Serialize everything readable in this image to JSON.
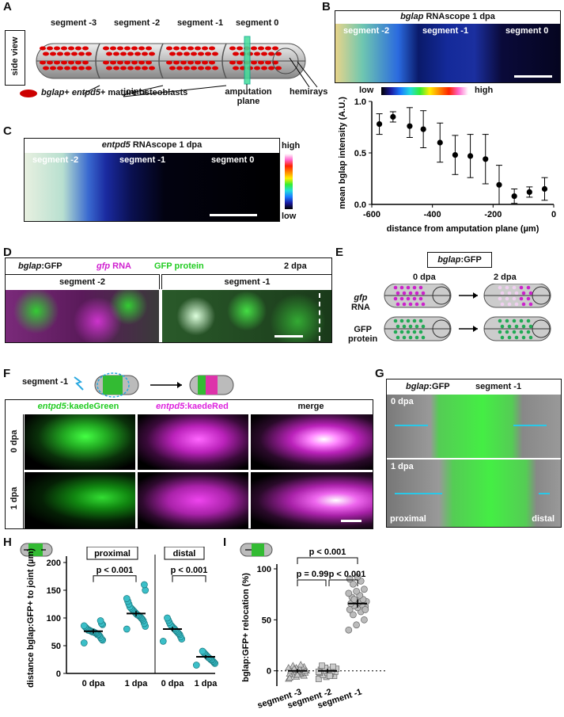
{
  "panels": {
    "A": {
      "label": "A",
      "side_view": "side view",
      "segments": [
        "segment -3",
        "segment -2",
        "segment -1",
        "segment 0"
      ],
      "joints": "joints",
      "amputation_plane": "amputation plane",
      "hemirays": "hemirays",
      "legend_gene1": "bglap",
      "legend_plus": "+",
      "legend_gene2": "entpd5",
      "legend_tail": "+ mature osteoblasts"
    },
    "B": {
      "label": "B",
      "title_gene": "bglap",
      "title_rest": "RNAscope 1 dpa",
      "segments": [
        "segment -2",
        "segment -1",
        "segment 0"
      ],
      "scale_low": "low",
      "scale_high": "high"
    },
    "C": {
      "label": "C",
      "title_gene": "entpd5",
      "title_rest": "RNAscope 1 dpa",
      "segments": [
        "segment -2",
        "segment -1",
        "segment 0"
      ],
      "scale_high": "high",
      "scale_low": "low"
    },
    "D": {
      "label": "D",
      "title_gene": "bglap",
      "title_gfp": ":GFP",
      "rna_gene": "gfp",
      "rna_word": "RNA",
      "protein": "GFP protein",
      "time": "2 dpa",
      "segments": [
        "segment -2",
        "segment -1"
      ]
    },
    "E": {
      "label": "E",
      "title_gene": "bglap",
      "title_gfp": ":GFP",
      "t0": "0 dpa",
      "t2": "2 dpa",
      "row1_gene": "gfp",
      "row1_word": "RNA",
      "row2_a": "GFP",
      "row2_b": "protein"
    },
    "F": {
      "label": "F",
      "segment": "segment -1",
      "col1_gene": "entpd5",
      "col1_rest": ":kaedeGreen",
      "col2_gene": "entpd5",
      "col2_rest": ":kaedeRed",
      "col3": "merge",
      "row1": "0 dpa",
      "row2": "1 dpa"
    },
    "G": {
      "label": "G",
      "title_gene": "bglap",
      "title_gfp": ":GFP",
      "segment": "segment -1",
      "t0": "0 dpa",
      "t1": "1 dpa",
      "proximal": "proximal",
      "distal": "distal"
    },
    "H": {
      "label": "H",
      "group_proximal": "proximal",
      "group_distal": "distal",
      "p1": "p < 0.001",
      "p2": "p < 0.001"
    },
    "I": {
      "label": "I",
      "p_top": "p < 0.001",
      "p_left": "p = 0.99",
      "p_right": "p < 0.001"
    }
  },
  "chart_data": [
    {
      "panel": "B",
      "type": "scatter",
      "xlabel": "distance from amputation plane (µm)",
      "ylabel": "mean bglap intensity (A.U.)",
      "xlim": [
        -600,
        0
      ],
      "ylim": [
        0,
        1.0
      ],
      "xticks": [
        -600,
        -400,
        -200,
        0
      ],
      "yticks": [
        0.0,
        0.5,
        1.0
      ],
      "reference_line": 0,
      "points": [
        {
          "x": -575,
          "y": 0.78,
          "lo": 0.68,
          "hi": 0.88
        },
        {
          "x": -530,
          "y": 0.85,
          "lo": 0.8,
          "hi": 0.9
        },
        {
          "x": -475,
          "y": 0.76,
          "lo": 0.65,
          "hi": 0.94
        },
        {
          "x": -430,
          "y": 0.73,
          "lo": 0.55,
          "hi": 0.91
        },
        {
          "x": -375,
          "y": 0.6,
          "lo": 0.41,
          "hi": 0.79
        },
        {
          "x": -325,
          "y": 0.48,
          "lo": 0.29,
          "hi": 0.67
        },
        {
          "x": -275,
          "y": 0.47,
          "lo": 0.26,
          "hi": 0.68
        },
        {
          "x": -225,
          "y": 0.44,
          "lo": 0.2,
          "hi": 0.68
        },
        {
          "x": -180,
          "y": 0.19,
          "lo": 0.0,
          "hi": 0.38
        },
        {
          "x": -130,
          "y": 0.08,
          "lo": 0.01,
          "hi": 0.15
        },
        {
          "x": -80,
          "y": 0.12,
          "lo": 0.07,
          "hi": 0.17
        },
        {
          "x": -30,
          "y": 0.15,
          "lo": 0.04,
          "hi": 0.26
        }
      ]
    },
    {
      "panel": "H",
      "type": "scatter",
      "ylabel": "distance bglap:GFP+ to joint (µm)",
      "ylim": [
        0,
        200
      ],
      "yticks": [
        0,
        50,
        100,
        150,
        200
      ],
      "categories": [
        "0 dpa",
        "1 dpa",
        "0 dpa",
        "1 dpa"
      ],
      "groups": [
        "proximal",
        "proximal",
        "distal",
        "distal"
      ],
      "means": [
        76,
        108,
        80,
        30
      ],
      "sem": [
        4,
        5,
        4,
        3
      ],
      "values": [
        [
          55,
          60,
          62,
          65,
          68,
          70,
          70,
          72,
          73,
          74,
          75,
          75,
          76,
          77,
          78,
          78,
          80,
          82,
          84,
          86,
          88,
          90,
          95
        ],
        [
          80,
          85,
          90,
          95,
          98,
          100,
          102,
          104,
          105,
          106,
          108,
          110,
          112,
          114,
          116,
          118,
          120,
          125,
          130,
          135,
          150,
          160
        ],
        [
          58,
          62,
          66,
          70,
          72,
          74,
          76,
          78,
          80,
          82,
          84,
          86,
          88,
          92,
          96,
          100
        ],
        [
          15,
          18,
          20,
          22,
          24,
          25,
          27,
          28,
          30,
          32,
          34,
          36,
          38,
          40
        ]
      ]
    },
    {
      "panel": "I",
      "type": "scatter",
      "ylabel": "bglap:GFP+ relocation (%)",
      "ylim": [
        -15,
        100
      ],
      "yticks": [
        0,
        50,
        100
      ],
      "reference_line": 0,
      "categories": [
        "segment -3",
        "segment -2",
        "segment -1"
      ],
      "means": [
        0,
        0,
        66
      ],
      "sem": [
        2,
        2,
        4
      ],
      "values": [
        [
          -8,
          -6,
          -5,
          -4,
          -3,
          -3,
          -2,
          -2,
          -1,
          -1,
          0,
          0,
          0,
          1,
          1,
          2,
          2,
          3,
          3,
          4,
          5,
          6,
          -7,
          -4,
          0,
          2
        ],
        [
          -8,
          -6,
          -5,
          -4,
          -3,
          -2,
          -2,
          -1,
          0,
          0,
          1,
          1,
          2,
          3,
          4,
          5,
          -5,
          -1
        ],
        [
          40,
          45,
          50,
          55,
          58,
          60,
          62,
          63,
          64,
          65,
          66,
          67,
          68,
          69,
          70,
          72,
          74,
          76,
          78,
          80,
          85,
          88,
          90,
          92,
          60,
          70
        ]
      ]
    }
  ]
}
